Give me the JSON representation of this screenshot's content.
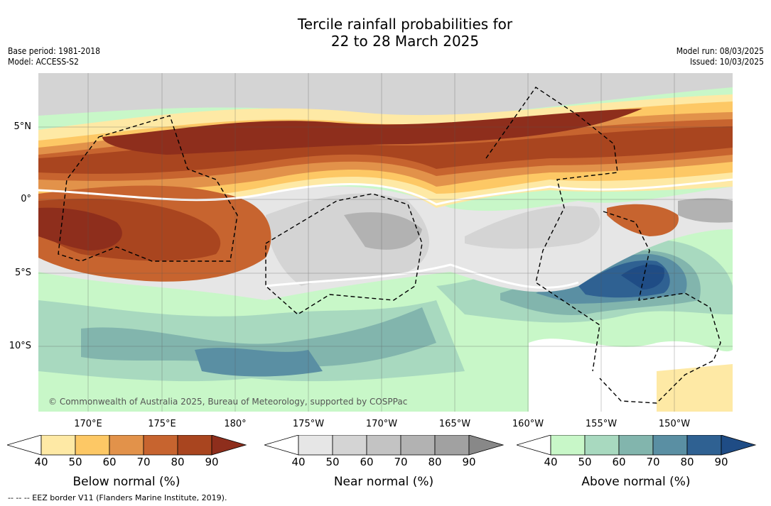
{
  "title": {
    "line1": "Tercile rainfall probabilities for",
    "line2": "22 to 28 March 2025"
  },
  "meta_left": {
    "base_period": "Base period: 1981-2018",
    "model": "Model: ACCESS-S2"
  },
  "meta_right": {
    "model_run": "Model run: 08/03/2025",
    "issued": "Issued: 10/03/2025"
  },
  "map": {
    "lat_labels": [
      "5°N",
      "0°",
      "5°S",
      "10°S"
    ],
    "lon_labels": [
      "170°E",
      "175°E",
      "180°",
      "175°W",
      "170°W",
      "165°W",
      "160°W",
      "155°W",
      "150°W"
    ],
    "credit": "© Commonwealth of Australia 2025, Bureau of Meteorology, supported by COSPPac"
  },
  "legends": [
    {
      "title": "Below normal (%)",
      "ticks": [
        "40",
        "50",
        "60",
        "70",
        "80",
        "90"
      ],
      "colors": [
        "#ffffff",
        "#fee9a5",
        "#fdc865",
        "#e2924a",
        "#c7642f",
        "#a9451f",
        "#8e2e1c"
      ]
    },
    {
      "title": "Near normal (%)",
      "ticks": [
        "40",
        "50",
        "60",
        "70",
        "80",
        "90"
      ],
      "colors": [
        "#ffffff",
        "#e6e6e6",
        "#d4d4d4",
        "#c3c3c3",
        "#b2b2b2",
        "#a1a1a1",
        "#888888"
      ]
    },
    {
      "title": "Above normal (%)",
      "ticks": [
        "40",
        "50",
        "60",
        "70",
        "80",
        "90"
      ],
      "colors": [
        "#ffffff",
        "#c8f7c8",
        "#a8d9bf",
        "#82b5ad",
        "#5a8fa3",
        "#2f6192",
        "#1f4c85"
      ]
    }
  ],
  "footnote": "-- -- -- EEZ border V11 (Flanders Marine Institute, 2019)."
}
